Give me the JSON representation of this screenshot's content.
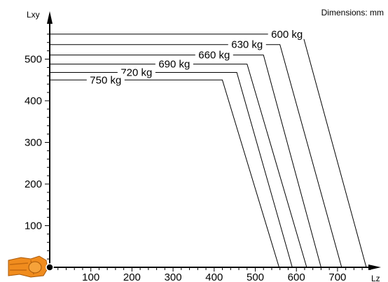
{
  "chart_data": {
    "type": "line",
    "note": "Dimensions: mm",
    "xlabel": "Lz",
    "ylabel": "Lxy",
    "xlim": [
      0,
      840
    ],
    "ylim": [
      0,
      570
    ],
    "xticks": [
      100,
      200,
      300,
      400,
      500,
      600,
      700
    ],
    "yticks": [
      100,
      200,
      300,
      400,
      500
    ],
    "grid": false,
    "legend": "none",
    "line_color": "#000000",
    "series": [
      {
        "name": "600 kg",
        "points": [
          [
            0,
            560
          ],
          [
            615,
            560
          ],
          [
            770,
            0
          ]
        ]
      },
      {
        "name": "630 kg",
        "points": [
          [
            0,
            535
          ],
          [
            560,
            535
          ],
          [
            710,
            0
          ]
        ]
      },
      {
        "name": "660 kg",
        "points": [
          [
            0,
            510
          ],
          [
            520,
            510
          ],
          [
            660,
            0
          ]
        ]
      },
      {
        "name": "690 kg",
        "points": [
          [
            0,
            488
          ],
          [
            480,
            488
          ],
          [
            625,
            0
          ]
        ]
      },
      {
        "name": "720 kg",
        "points": [
          [
            0,
            468
          ],
          [
            455,
            468
          ],
          [
            590,
            0
          ]
        ]
      },
      {
        "name": "750 kg",
        "points": [
          [
            0,
            450
          ],
          [
            420,
            450
          ],
          [
            558,
            0
          ]
        ]
      }
    ]
  },
  "robot_base": {
    "color": "#f08c1e",
    "icon": "robot-base-icon"
  }
}
